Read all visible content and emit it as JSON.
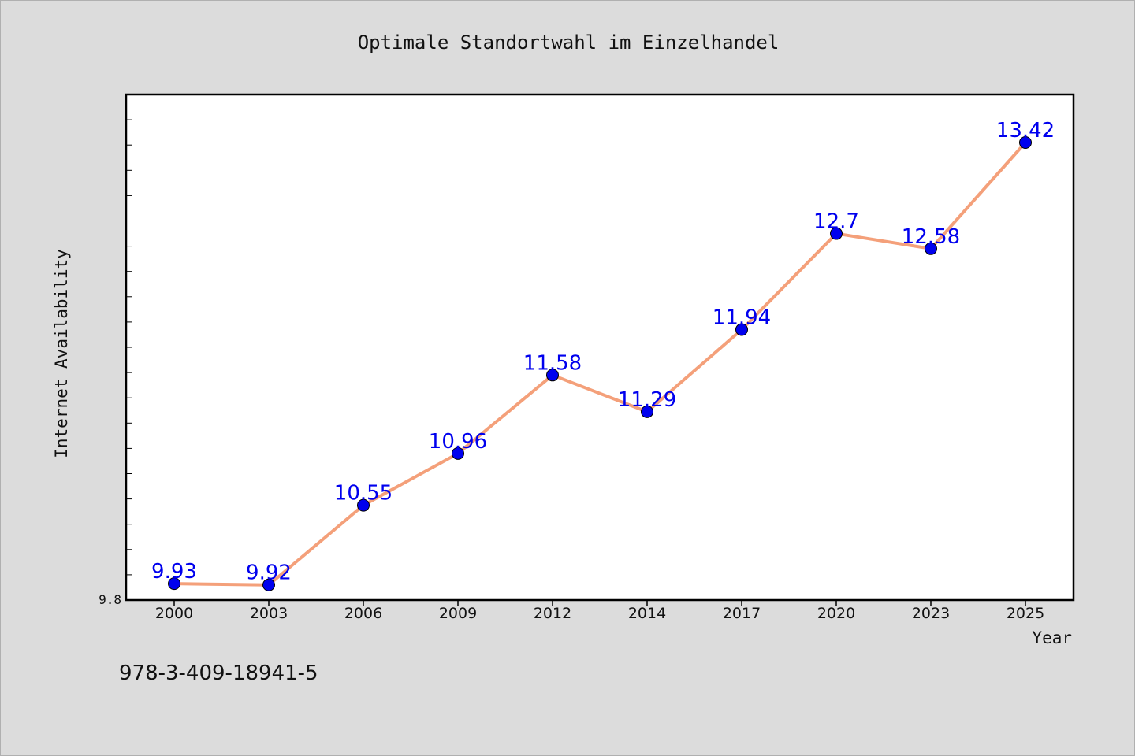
{
  "chart_data": {
    "type": "line",
    "title": "Optimale Standortwahl im Einzelhandel",
    "xlabel": "Year",
    "ylabel": "Internet Availability",
    "x": [
      "2000",
      "2003",
      "2006",
      "2009",
      "2012",
      "2014",
      "2017",
      "2020",
      "2023",
      "2025"
    ],
    "series": [
      {
        "values": [
          9.93,
          9.92,
          10.55,
          10.96,
          11.58,
          11.29,
          11.94,
          12.7,
          12.58,
          13.42
        ]
      }
    ],
    "data_labels": [
      "9.93",
      "9.92",
      "10.55",
      "10.96",
      "11.58",
      "11.29",
      "11.94",
      "12.7",
      "12.58",
      "13.42"
    ],
    "y_tick_labels": [
      "9.8"
    ],
    "ylim": [
      9.8,
      13.8
    ],
    "grid": false,
    "colors": {
      "line": "#f4a07a",
      "marker": "#0000ee",
      "label": "#0000ee",
      "plot_background": "#ffffff",
      "figure_background": "#dcdcdc"
    }
  },
  "footer": {
    "isbn": "978-3-409-18941-5"
  }
}
